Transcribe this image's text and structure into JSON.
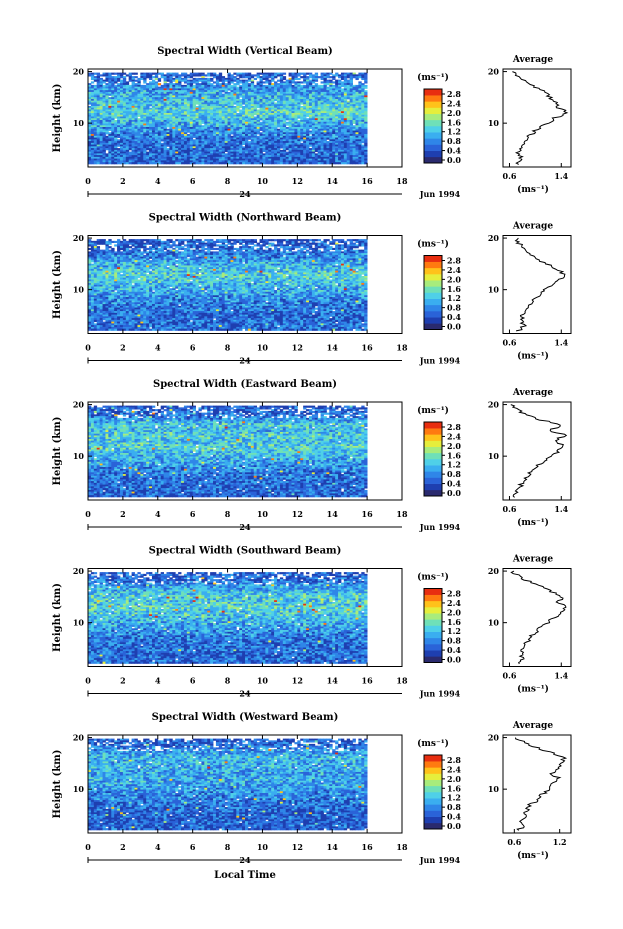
{
  "colors": {
    "colormap": [
      "#2a2a6e",
      "#1e3fb0",
      "#2a63d8",
      "#2f86e8",
      "#3aaef0",
      "#4fd0e8",
      "#6fe0b8",
      "#a8ec7c",
      "#e6ee3c",
      "#ffc21a",
      "#ff7a10",
      "#e82e10"
    ]
  },
  "shared": {
    "day_label": "24",
    "month_label": "Jun 1994",
    "height_label": "Height (km)",
    "unit_label": "(ms⁻¹)",
    "avg_title": "Average",
    "avg_unit": "(ms⁻¹)",
    "x_label": "Local Time"
  },
  "chart_data": [
    {
      "type": "heatmap",
      "title": "Spectral Width (Vertical Beam)",
      "ylabel": "Height (km)",
      "x_ticks": [
        "0",
        "2",
        "4",
        "6",
        "8",
        "10",
        "12",
        "14",
        "16",
        "18"
      ],
      "xlim": [
        0,
        18
      ],
      "data_xlim": [
        0,
        16
      ],
      "y_ticks": [
        "20",
        "10"
      ],
      "ylim": [
        1.5,
        20.5
      ],
      "colorbar_ticks": [
        "2.8",
        "2.4",
        "2.0",
        "1.6",
        "1.2",
        "0.8",
        "0.4",
        "0.0"
      ],
      "profile": {
        "title": "Average",
        "xlabel": "(ms⁻¹)",
        "x_ticks": [
          "0.6",
          "1.4"
        ],
        "xlim": [
          0.5,
          1.55
        ],
        "heights": [
          2,
          3,
          4,
          5,
          6,
          7,
          8,
          9,
          10,
          11,
          12,
          13,
          14,
          15,
          16,
          17,
          18,
          19,
          20
        ],
        "values": [
          0.72,
          0.78,
          0.74,
          0.76,
          0.8,
          0.86,
          0.95,
          1.05,
          1.2,
          1.3,
          1.52,
          1.36,
          1.3,
          1.24,
          1.14,
          1.0,
          0.86,
          0.74,
          0.66
        ]
      }
    },
    {
      "type": "heatmap",
      "title": "Spectral Width (Northward Beam)",
      "ylabel": "Height (km)",
      "x_ticks": [
        "0",
        "2",
        "4",
        "6",
        "8",
        "10",
        "12",
        "14",
        "16",
        "18"
      ],
      "xlim": [
        0,
        18
      ],
      "data_xlim": [
        0,
        16
      ],
      "y_ticks": [
        "20",
        "10"
      ],
      "ylim": [
        1.5,
        20.5
      ],
      "colorbar_ticks": [
        "2.8",
        "2.4",
        "2.0",
        "1.6",
        "1.2",
        "0.8",
        "0.4",
        "0.0"
      ],
      "profile": {
        "title": "Average",
        "xlabel": "(ms⁻¹)",
        "x_ticks": [
          "0.6",
          "1.4"
        ],
        "xlim": [
          0.5,
          1.55
        ],
        "heights": [
          2,
          3,
          4,
          5,
          6,
          7,
          8,
          9,
          10,
          11,
          12,
          13,
          14,
          15,
          16,
          17,
          18,
          19,
          20
        ],
        "values": [
          0.74,
          0.82,
          0.78,
          0.8,
          0.84,
          0.9,
          0.98,
          1.06,
          1.15,
          1.25,
          1.38,
          1.45,
          1.32,
          1.18,
          1.02,
          0.9,
          0.84,
          0.74,
          0.7
        ]
      }
    },
    {
      "type": "heatmap",
      "title": "Spectral Width (Eastward Beam)",
      "ylabel": "Height (km)",
      "x_ticks": [
        "0",
        "2",
        "4",
        "6",
        "8",
        "10",
        "12",
        "14",
        "16",
        "18"
      ],
      "xlim": [
        0,
        18
      ],
      "data_xlim": [
        0,
        16
      ],
      "y_ticks": [
        "20",
        "10"
      ],
      "ylim": [
        1.5,
        20.5
      ],
      "colorbar_ticks": [
        "2.8",
        "2.4",
        "2.0",
        "1.6",
        "1.2",
        "0.8",
        "0.4",
        "0.0"
      ],
      "profile": {
        "title": "Average",
        "xlabel": "(ms⁻¹)",
        "x_ticks": [
          "0.6",
          "1.4"
        ],
        "xlim": [
          0.5,
          1.55
        ],
        "heights": [
          2,
          3,
          4,
          5,
          6,
          7,
          8,
          9,
          10,
          11,
          12,
          13,
          14,
          15,
          16,
          17,
          18,
          19,
          20
        ],
        "values": [
          0.66,
          0.72,
          0.76,
          0.8,
          0.86,
          0.92,
          1.0,
          1.12,
          1.24,
          1.36,
          1.44,
          1.28,
          1.48,
          1.22,
          1.4,
          1.1,
          0.84,
          0.72,
          0.62
        ]
      }
    },
    {
      "type": "heatmap",
      "title": "Spectral Width (Southward Beam)",
      "ylabel": "Height (km)",
      "x_ticks": [
        "0",
        "2",
        "4",
        "6",
        "8",
        "10",
        "12",
        "14",
        "16",
        "18"
      ],
      "xlim": [
        0,
        18
      ],
      "data_xlim": [
        0,
        16
      ],
      "y_ticks": [
        "20",
        "10"
      ],
      "ylim": [
        1.5,
        20.5
      ],
      "colorbar_ticks": [
        "2.8",
        "2.4",
        "2.0",
        "1.6",
        "1.2",
        "0.8",
        "0.4",
        "0.0"
      ],
      "profile": {
        "title": "Average",
        "xlabel": "(ms⁻¹)",
        "x_ticks": [
          "0.6",
          "1.4"
        ],
        "xlim": [
          0.5,
          1.55
        ],
        "heights": [
          2,
          3,
          4,
          5,
          6,
          7,
          8,
          9,
          10,
          11,
          12,
          13,
          14,
          15,
          16,
          17,
          18,
          19,
          20
        ],
        "values": [
          0.72,
          0.8,
          0.78,
          0.82,
          0.86,
          0.9,
          0.98,
          1.08,
          1.18,
          1.3,
          1.4,
          1.48,
          1.36,
          1.42,
          1.26,
          1.1,
          0.9,
          0.74,
          0.64
        ]
      }
    },
    {
      "type": "heatmap",
      "title": "Spectral Width (Westward Beam)",
      "ylabel": "Height (km)",
      "x_ticks": [
        "0",
        "2",
        "4",
        "6",
        "8",
        "10",
        "12",
        "14",
        "16",
        "18"
      ],
      "xlim": [
        0,
        18
      ],
      "data_xlim": [
        0,
        16
      ],
      "y_ticks": [
        "20",
        "10"
      ],
      "ylim": [
        1.5,
        20.5
      ],
      "colorbar_ticks": [
        "2.8",
        "2.4",
        "2.0",
        "1.6",
        "1.2",
        "0.8",
        "0.4",
        "0.0"
      ],
      "profile": {
        "title": "Average",
        "xlabel": "(ms⁻¹)",
        "x_ticks": [
          "0.6",
          "1.2"
        ],
        "xlim": [
          0.45,
          1.35
        ],
        "heights": [
          2,
          3,
          4,
          5,
          6,
          7,
          8,
          9,
          10,
          11,
          12,
          13,
          14,
          15,
          16,
          17,
          18,
          19,
          20
        ],
        "values": [
          0.66,
          0.72,
          0.7,
          0.74,
          0.78,
          0.82,
          0.9,
          0.98,
          1.05,
          1.12,
          1.2,
          1.1,
          1.16,
          1.22,
          1.26,
          1.1,
          0.92,
          0.74,
          0.62
        ]
      }
    }
  ]
}
